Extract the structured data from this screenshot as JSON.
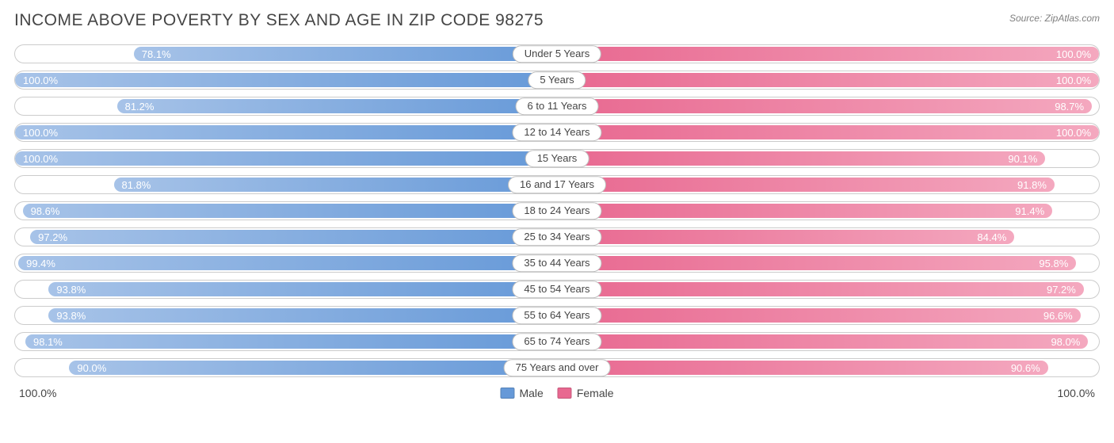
{
  "title": "INCOME ABOVE POVERTY BY SEX AND AGE IN ZIP CODE 98275",
  "source": "Source: ZipAtlas.com",
  "colors": {
    "male": "#6699d8",
    "female": "#e86890",
    "male_grad_light": "#a7c3e8",
    "female_grad_light": "#f4a8bf",
    "track_border": "#cccccc",
    "text": "#454545",
    "bar_text": "#ffffff"
  },
  "axis": {
    "left": "100.0%",
    "right": "100.0%"
  },
  "legend": [
    {
      "label": "Male",
      "color": "#6699d8"
    },
    {
      "label": "Female",
      "color": "#e86890"
    }
  ],
  "rows": [
    {
      "category": "Under 5 Years",
      "male": 78.1,
      "female": 100.0
    },
    {
      "category": "5 Years",
      "male": 100.0,
      "female": 100.0
    },
    {
      "category": "6 to 11 Years",
      "male": 81.2,
      "female": 98.7
    },
    {
      "category": "12 to 14 Years",
      "male": 100.0,
      "female": 100.0
    },
    {
      "category": "15 Years",
      "male": 100.0,
      "female": 90.1
    },
    {
      "category": "16 and 17 Years",
      "male": 81.8,
      "female": 91.8
    },
    {
      "category": "18 to 24 Years",
      "male": 98.6,
      "female": 91.4
    },
    {
      "category": "25 to 34 Years",
      "male": 97.2,
      "female": 84.4
    },
    {
      "category": "35 to 44 Years",
      "male": 99.4,
      "female": 95.8
    },
    {
      "category": "45 to 54 Years",
      "male": 93.8,
      "female": 97.2
    },
    {
      "category": "55 to 64 Years",
      "male": 93.8,
      "female": 96.6
    },
    {
      "category": "65 to 74 Years",
      "male": 98.1,
      "female": 98.0
    },
    {
      "category": "75 Years and over",
      "male": 90.0,
      "female": 90.6
    }
  ]
}
